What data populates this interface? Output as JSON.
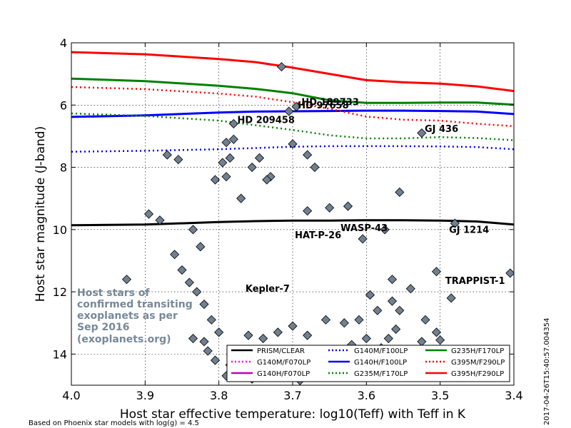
{
  "chart_data": {
    "type": "line",
    "xlabel": "Host star effective temperature: log10(Teff) with Teff in K",
    "ylabel": "Host star magnitude (J-band)",
    "xlim": [
      4.0,
      3.4
    ],
    "ylim": [
      15,
      4
    ],
    "x_ticks": [
      "4.0",
      "3.9",
      "3.8",
      "3.7",
      "3.6",
      "3.5",
      "3.4"
    ],
    "y_ticks": [
      "4",
      "6",
      "8",
      "10",
      "12",
      "14"
    ],
    "x_tick_values": [
      4.0,
      3.9,
      3.8,
      3.7,
      3.6,
      3.5,
      3.4
    ],
    "y_tick_values": [
      4,
      6,
      8,
      10,
      12,
      14
    ],
    "grid": true,
    "legend_location": "lower-right",
    "series": [
      {
        "name": "PRISM/CLEAR",
        "color": "#000000",
        "style": "solid",
        "x": [
          4.0,
          3.9,
          3.8,
          3.75,
          3.7,
          3.65,
          3.6,
          3.55,
          3.5,
          3.45,
          3.4
        ],
        "y": [
          9.86,
          9.84,
          9.76,
          9.73,
          9.71,
          9.71,
          9.7,
          9.7,
          9.71,
          9.74,
          9.84
        ]
      },
      {
        "name": "G140M/F070LP",
        "color": "#ff00ff",
        "style": "dotted",
        "x": [],
        "y": []
      },
      {
        "name": "G140H/F070LP",
        "color": "#bf00bf",
        "style": "solid",
        "x": [],
        "y": []
      },
      {
        "name": "G140M/F100LP",
        "color": "#0000ff",
        "style": "dotted",
        "x": [
          4.0,
          3.9,
          3.8,
          3.75,
          3.7,
          3.65,
          3.6,
          3.55,
          3.5,
          3.45,
          3.4
        ],
        "y": [
          7.5,
          7.47,
          7.42,
          7.38,
          7.34,
          7.32,
          7.32,
          7.32,
          7.33,
          7.35,
          7.42
        ]
      },
      {
        "name": "G140H/F100LP",
        "color": "#0000ff",
        "style": "solid",
        "x": [
          4.0,
          3.9,
          3.8,
          3.75,
          3.7,
          3.65,
          3.6,
          3.55,
          3.5,
          3.45,
          3.4
        ],
        "y": [
          6.38,
          6.33,
          6.24,
          6.21,
          6.2,
          6.19,
          6.18,
          6.18,
          6.19,
          6.21,
          6.29
        ]
      },
      {
        "name": "G235M/F170LP",
        "color": "#008000",
        "style": "dotted",
        "x": [
          4.0,
          3.9,
          3.8,
          3.75,
          3.7,
          3.65,
          3.6,
          3.55,
          3.5,
          3.45,
          3.4
        ],
        "y": [
          6.27,
          6.35,
          6.5,
          6.65,
          6.8,
          6.97,
          7.07,
          7.07,
          7.03,
          7.06,
          7.13
        ]
      },
      {
        "name": "G235H/F170LP",
        "color": "#008000",
        "style": "solid",
        "x": [
          4.0,
          3.9,
          3.8,
          3.75,
          3.7,
          3.65,
          3.6,
          3.55,
          3.5,
          3.45,
          3.4
        ],
        "y": [
          5.15,
          5.23,
          5.38,
          5.48,
          5.62,
          5.85,
          5.93,
          5.93,
          5.92,
          5.92,
          5.99
        ]
      },
      {
        "name": "G395M/F290LP",
        "color": "#ff0000",
        "style": "dotted",
        "x": [
          4.0,
          3.9,
          3.8,
          3.75,
          3.7,
          3.65,
          3.6,
          3.55,
          3.5,
          3.45,
          3.4
        ],
        "y": [
          5.42,
          5.49,
          5.63,
          5.73,
          5.91,
          6.12,
          6.37,
          6.47,
          6.5,
          6.6,
          6.68
        ]
      },
      {
        "name": "G395H/F290LP",
        "color": "#ff0000",
        "style": "solid",
        "x": [
          4.0,
          3.9,
          3.8,
          3.75,
          3.7,
          3.65,
          3.6,
          3.55,
          3.5,
          3.45,
          3.4
        ],
        "y": [
          4.3,
          4.37,
          4.52,
          4.62,
          4.8,
          5.0,
          5.2,
          5.27,
          5.31,
          5.4,
          5.55
        ]
      }
    ],
    "scatter": {
      "name": "Host stars of confirmed transiting exoplanets",
      "marker": "diamond",
      "fill": "#708090",
      "edge": "#000000",
      "points": [
        [
          3.715,
          4.77
        ],
        [
          3.695,
          6.05
        ],
        [
          3.705,
          6.2
        ],
        [
          3.78,
          6.6
        ],
        [
          3.525,
          6.9
        ],
        [
          3.78,
          7.1
        ],
        [
          3.79,
          7.2
        ],
        [
          3.7,
          7.25
        ],
        [
          3.87,
          7.6
        ],
        [
          3.855,
          7.75
        ],
        [
          3.785,
          7.7
        ],
        [
          3.745,
          7.7
        ],
        [
          3.68,
          7.6
        ],
        [
          3.67,
          8.0
        ],
        [
          3.795,
          7.85
        ],
        [
          3.73,
          8.3
        ],
        [
          3.805,
          8.4
        ],
        [
          3.79,
          8.3
        ],
        [
          3.755,
          8.0
        ],
        [
          3.555,
          8.8
        ],
        [
          3.895,
          9.5
        ],
        [
          3.88,
          9.7
        ],
        [
          3.68,
          9.4
        ],
        [
          3.65,
          9.3
        ],
        [
          3.625,
          9.25
        ],
        [
          3.575,
          10.0
        ],
        [
          3.605,
          10.3
        ],
        [
          3.48,
          9.8
        ],
        [
          3.735,
          8.4
        ],
        [
          3.77,
          9.0
        ],
        [
          3.925,
          11.6
        ],
        [
          3.405,
          11.4
        ],
        [
          3.505,
          11.35
        ],
        [
          3.485,
          12.2
        ],
        [
          3.54,
          11.9
        ],
        [
          3.565,
          11.6
        ],
        [
          3.52,
          12.9
        ],
        [
          3.505,
          13.3
        ],
        [
          3.5,
          13.55
        ],
        [
          3.525,
          13.6
        ],
        [
          3.835,
          10.0
        ],
        [
          3.825,
          10.55
        ],
        [
          3.86,
          10.8
        ],
        [
          3.85,
          11.3
        ],
        [
          3.84,
          11.7
        ],
        [
          3.83,
          12.0
        ],
        [
          3.82,
          12.4
        ],
        [
          3.81,
          12.9
        ],
        [
          3.8,
          13.3
        ],
        [
          3.82,
          13.6
        ],
        [
          3.835,
          13.5
        ],
        [
          3.815,
          13.9
        ],
        [
          3.805,
          14.2
        ],
        [
          3.79,
          14.7
        ],
        [
          3.785,
          14.35
        ],
        [
          3.77,
          14.5
        ],
        [
          3.755,
          14.8
        ],
        [
          3.74,
          14.5
        ],
        [
          3.725,
          14.7
        ],
        [
          3.69,
          14.85
        ],
        [
          3.67,
          14.5
        ],
        [
          3.65,
          14.3
        ],
        [
          3.64,
          14.0
        ],
        [
          3.62,
          13.7
        ],
        [
          3.6,
          13.5
        ],
        [
          3.58,
          13.8
        ],
        [
          3.57,
          13.5
        ],
        [
          3.56,
          13.2
        ],
        [
          3.555,
          12.6
        ],
        [
          3.565,
          12.3
        ],
        [
          3.585,
          12.6
        ],
        [
          3.595,
          12.1
        ],
        [
          3.61,
          12.9
        ],
        [
          3.63,
          13.0
        ],
        [
          3.655,
          12.9
        ],
        [
          3.68,
          13.4
        ],
        [
          3.7,
          13.1
        ],
        [
          3.72,
          13.3
        ],
        [
          3.74,
          13.5
        ],
        [
          3.76,
          13.4
        ]
      ]
    },
    "annotations": [
      {
        "text": "HD 189733",
        "x": 3.688,
        "y": 6.0
      },
      {
        "text": "HD 97658",
        "x": 3.693,
        "y": 6.11
      },
      {
        "text": "HD 209458",
        "x": 3.775,
        "y": 6.58
      },
      {
        "text": "GJ 436",
        "x": 3.521,
        "y": 6.86
      },
      {
        "text": "HAT-P-26",
        "x": 3.697,
        "y": 10.28
      },
      {
        "text": "WASP-43",
        "x": 3.635,
        "y": 10.05
      },
      {
        "text": "GJ 1214",
        "x": 3.488,
        "y": 10.11
      },
      {
        "text": "TRAPPIST-1",
        "x": 3.493,
        "y": 11.75
      },
      {
        "text": "Kepler-7",
        "x": 3.764,
        "y": 12.0
      }
    ]
  },
  "note_lines": [
    "Host stars of",
    "confirmed transiting",
    "exoplanets as per",
    "Sep 2016",
    "(exoplanets.org)"
  ],
  "footer": "Based on Phoenix star models with log(g) = 4.5",
  "timestamp": "2017-04-26T15:40:57.004354"
}
